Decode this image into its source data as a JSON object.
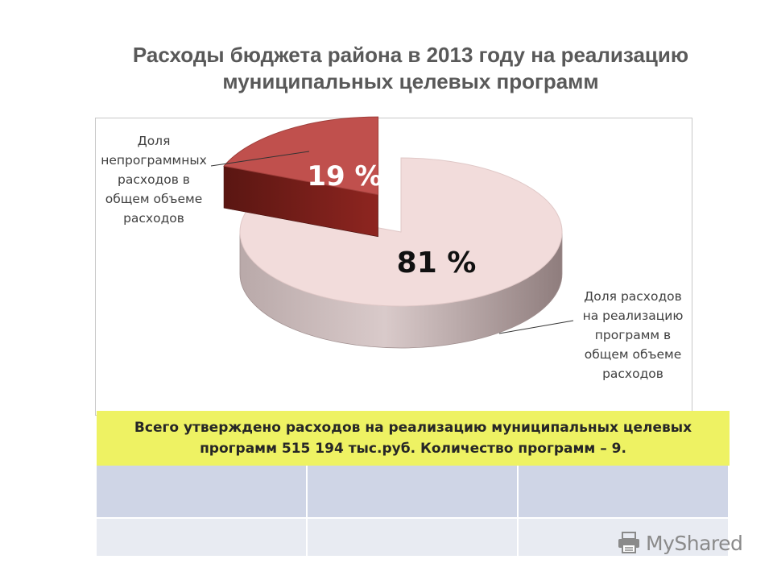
{
  "title": {
    "line1": "Расходы бюджета района в 2013 году на реализацию",
    "line2": "муниципальных целевых программ"
  },
  "chart_data": {
    "type": "pie",
    "title": "",
    "slices": [
      {
        "label_lines": [
          "Доля",
          "непрограммных",
          "расходов в",
          "общем объеме",
          "расходов"
        ],
        "value": 19,
        "display": "19 %",
        "color": "#c0504d"
      },
      {
        "label_lines": [
          "Доля расходов",
          "на реализацию",
          "программ в",
          "общем объеме",
          "расходов"
        ],
        "value": 81,
        "display": "81 %",
        "color": "#f2dcdb"
      }
    ],
    "style": "3d-exploded",
    "legend": "none"
  },
  "summary": {
    "line1": "Всего утверждено расходов на реализацию муниципальных целевых",
    "line2": "программ 515 194 тыс.руб. Количество программ – 9."
  },
  "watermark": {
    "text": "MyShared",
    "icon": "printer-icon"
  },
  "colors": {
    "summary_bg": "#eef263",
    "table_row1": "#cfd5e6",
    "table_row2": "#e8ebf2"
  }
}
